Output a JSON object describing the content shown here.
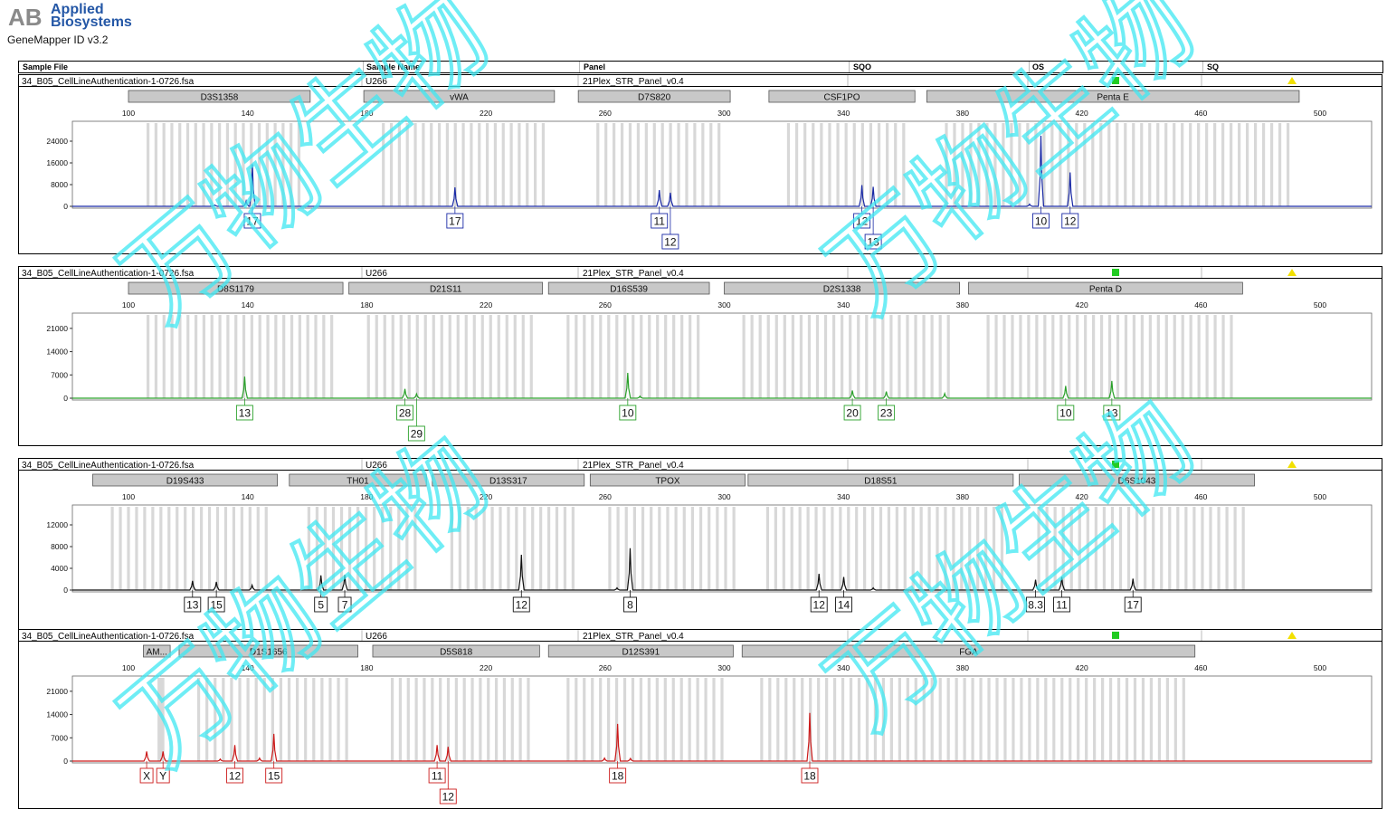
{
  "header": {
    "brand_line1": "Applied",
    "brand_line2": "Biosystems",
    "logo_letters": "AB",
    "app_version": "GeneMapper ID v3.2"
  },
  "columns": [
    "Sample File",
    "Sample Name",
    "Panel",
    "SQO",
    "OS",
    "SQ"
  ],
  "colors": {
    "blue": "#1a2aa6",
    "green": "#2aa02a",
    "black": "#111111",
    "red": "#cc1a1a",
    "status_green": "#22cc22",
    "status_yellow": "#f2e000",
    "watermark": "#3fe8f2"
  },
  "watermark_text": "万物生物",
  "panels": [
    {
      "sample_file": "34_B05_CellLineAuthentication-1-0726.fsa",
      "sample_name": "U266",
      "panel": "21Plex_STR_Panel_v0.4",
      "dye": "blue",
      "markers": [
        {
          "name": "D3S1358",
          "start": 100,
          "end": 161
        },
        {
          "name": "vWA",
          "start": 179,
          "end": 243
        },
        {
          "name": "D7S820",
          "start": 251,
          "end": 302
        },
        {
          "name": "CSF1PO",
          "start": 315,
          "end": 364
        },
        {
          "name": "Penta E",
          "start": 368,
          "end": 493
        }
      ],
      "x_ticks": [
        100,
        140,
        180,
        220,
        260,
        300,
        340,
        380,
        420,
        460,
        500
      ],
      "y_ticks": [
        "24000",
        "16000",
        "8000",
        "0"
      ],
      "y_max": 30000,
      "peaks": [
        {
          "x": 141.6,
          "h": 15500,
          "label": "17",
          "row": 0
        },
        {
          "x": 139.5,
          "h": 2000,
          "label": "",
          "row": 0
        },
        {
          "x": 129,
          "h": 500,
          "label": "",
          "row": 0
        },
        {
          "x": 209.6,
          "h": 7000,
          "label": "17",
          "row": 0
        },
        {
          "x": 278.2,
          "h": 6000,
          "label": "11",
          "row": 0
        },
        {
          "x": 281.9,
          "h": 5000,
          "label": "12",
          "row": 1
        },
        {
          "x": 346.2,
          "h": 7800,
          "label": "12",
          "row": 0
        },
        {
          "x": 350.0,
          "h": 7200,
          "label": "13",
          "row": 1
        },
        {
          "x": 406.3,
          "h": 26000,
          "label": "10",
          "row": 0
        },
        {
          "x": 416.1,
          "h": 12500,
          "label": "12",
          "row": 0
        },
        {
          "x": 402.5,
          "h": 800,
          "label": "",
          "row": 0
        }
      ]
    },
    {
      "sample_file": "34_B05_CellLineAuthentication-1-0726.fsa",
      "sample_name": "U266",
      "panel": "21Plex_STR_Panel_v0.4",
      "dye": "green",
      "markers": [
        {
          "name": "D8S1179",
          "start": 100,
          "end": 172
        },
        {
          "name": "D21S11",
          "start": 174,
          "end": 239
        },
        {
          "name": "D16S539",
          "start": 241,
          "end": 295
        },
        {
          "name": "D2S1338",
          "start": 300,
          "end": 379
        },
        {
          "name": "Penta D",
          "start": 382,
          "end": 474
        }
      ],
      "x_ticks": [
        100,
        140,
        180,
        220,
        260,
        300,
        340,
        380,
        420,
        460,
        500
      ],
      "y_ticks": [
        "21000",
        "14000",
        "7000",
        "0"
      ],
      "y_max": 24500,
      "peaks": [
        {
          "x": 139.0,
          "h": 6500,
          "label": "13",
          "row": 0
        },
        {
          "x": 192.8,
          "h": 2800,
          "label": "28",
          "row": 0
        },
        {
          "x": 196.7,
          "h": 1300,
          "label": "29",
          "row": 1
        },
        {
          "x": 267.6,
          "h": 7600,
          "label": "10",
          "row": 0
        },
        {
          "x": 343.0,
          "h": 2300,
          "label": "20",
          "row": 0
        },
        {
          "x": 354.4,
          "h": 2000,
          "label": "23",
          "row": 0
        },
        {
          "x": 374.0,
          "h": 1400,
          "label": "",
          "row": 0
        },
        {
          "x": 414.6,
          "h": 3700,
          "label": "10",
          "row": 0
        },
        {
          "x": 430.1,
          "h": 5200,
          "label": "13",
          "row": 0
        },
        {
          "x": 271.7,
          "h": 600,
          "label": "",
          "row": 0
        }
      ]
    },
    {
      "sample_file": "34_B05_CellLineAuthentication-1-0726.fsa",
      "sample_name": "U266",
      "panel": "21Plex_STR_Panel_v0.4",
      "dye": "black",
      "markers": [
        {
          "name": "D19S433",
          "start": 88,
          "end": 150
        },
        {
          "name": "TH01",
          "start": 154,
          "end": 200
        },
        {
          "name": "D13S317",
          "start": 202,
          "end": 253
        },
        {
          "name": "TPOX",
          "start": 255,
          "end": 307
        },
        {
          "name": "D18S51",
          "start": 308,
          "end": 397
        },
        {
          "name": "D6S1043",
          "start": 399,
          "end": 478
        }
      ],
      "x_ticks": [
        100,
        140,
        180,
        220,
        260,
        300,
        340,
        380,
        420,
        460,
        500
      ],
      "y_ticks": [
        "12000",
        "8000",
        "4000",
        "0"
      ],
      "y_max": 15000,
      "peaks": [
        {
          "x": 121.5,
          "h": 1700,
          "label": "13",
          "row": 0
        },
        {
          "x": 129.5,
          "h": 1500,
          "label": "15",
          "row": 0
        },
        {
          "x": 141.5,
          "h": 900,
          "label": "",
          "row": 0
        },
        {
          "x": 164.6,
          "h": 2700,
          "label": "5",
          "row": 0
        },
        {
          "x": 172.6,
          "h": 2800,
          "label": "7",
          "row": 0
        },
        {
          "x": 231.9,
          "h": 6500,
          "label": "12",
          "row": 0
        },
        {
          "x": 268.4,
          "h": 7700,
          "label": "8",
          "row": 0
        },
        {
          "x": 331.8,
          "h": 3000,
          "label": "12",
          "row": 0
        },
        {
          "x": 340.1,
          "h": 2400,
          "label": "14",
          "row": 0
        },
        {
          "x": 404.5,
          "h": 1900,
          "label": "8.3",
          "row": 0
        },
        {
          "x": 413.3,
          "h": 2400,
          "label": "11",
          "row": 0
        },
        {
          "x": 437.2,
          "h": 2100,
          "label": "17",
          "row": 0
        },
        {
          "x": 264.0,
          "h": 400,
          "label": "",
          "row": 0
        },
        {
          "x": 350,
          "h": 400,
          "label": "",
          "row": 0
        }
      ]
    },
    {
      "sample_file": "34_B05_CellLineAuthentication-1-0726.fsa",
      "sample_name": "U266",
      "panel": "21Plex_STR_Panel_v0.4",
      "dye": "red",
      "markers": [
        {
          "name": "AM...",
          "start": 105,
          "end": 114
        },
        {
          "name": "D1S1656",
          "start": 117,
          "end": 177
        },
        {
          "name": "D5S818",
          "start": 182,
          "end": 238
        },
        {
          "name": "D12S391",
          "start": 241,
          "end": 303
        },
        {
          "name": "FGA",
          "start": 306,
          "end": 458
        }
      ],
      "x_ticks": [
        100,
        140,
        180,
        220,
        260,
        300,
        340,
        380,
        420,
        460,
        500
      ],
      "y_ticks": [
        "21000",
        "14000",
        "7000",
        "0"
      ],
      "y_max": 24500,
      "peaks": [
        {
          "x": 106.1,
          "h": 2900,
          "label": "X",
          "row": 0
        },
        {
          "x": 111.6,
          "h": 2900,
          "label": "Y",
          "row": 0
        },
        {
          "x": 135.7,
          "h": 4800,
          "label": "12",
          "row": 0
        },
        {
          "x": 148.8,
          "h": 8200,
          "label": "15",
          "row": 0
        },
        {
          "x": 203.6,
          "h": 4800,
          "label": "11",
          "row": 0
        },
        {
          "x": 207.3,
          "h": 4300,
          "label": "12",
          "row": 1
        },
        {
          "x": 264.2,
          "h": 11200,
          "label": "18",
          "row": 0
        },
        {
          "x": 328.7,
          "h": 14500,
          "label": "18",
          "row": 0
        },
        {
          "x": 130.8,
          "h": 600,
          "label": "",
          "row": 0
        },
        {
          "x": 144.0,
          "h": 900,
          "label": "",
          "row": 0
        },
        {
          "x": 259.8,
          "h": 900,
          "label": "",
          "row": 0
        },
        {
          "x": 268.5,
          "h": 800,
          "label": "",
          "row": 0
        }
      ]
    }
  ]
}
